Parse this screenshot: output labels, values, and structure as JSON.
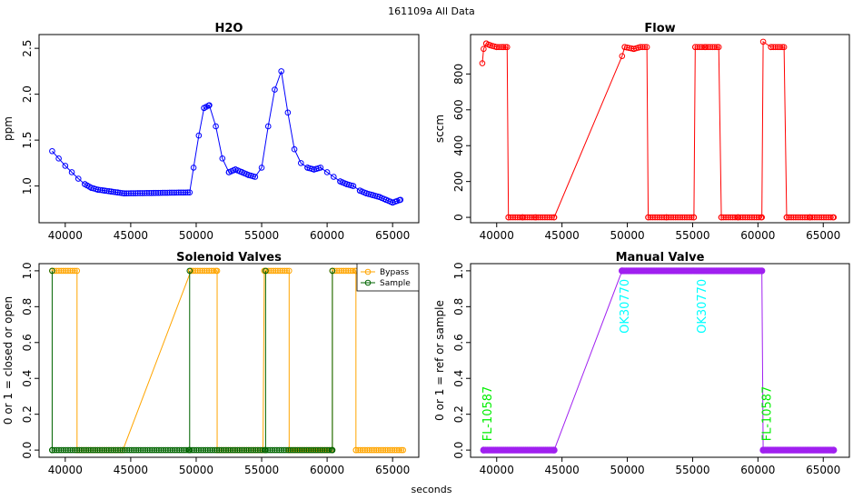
{
  "figure": {
    "suptitle": "161109a   All Data",
    "xlabel": "seconds"
  },
  "chart_data": [
    {
      "type": "scatter",
      "title": "H2O",
      "xlabel": "",
      "ylabel": "ppm",
      "xlim": [
        38000,
        67000
      ],
      "ylim": [
        0.6,
        2.65
      ],
      "xticks": [
        40000,
        45000,
        50000,
        55000,
        60000,
        65000
      ],
      "yticks": [
        1.0,
        1.5,
        2.0,
        2.5
      ],
      "xtick_labels": [
        "40000",
        "45000",
        "50000",
        "55000",
        "60000",
        "65000"
      ],
      "ytick_labels": [
        "1.0",
        "1.5",
        "2.0",
        "2.5"
      ],
      "grid": false,
      "series": [
        {
          "color": "#0000ff",
          "marker": "open-circle",
          "x": [
            39000,
            39500,
            40000,
            40500,
            41000,
            41500,
            42000,
            42500,
            43000,
            43500,
            44000,
            44500,
            49500,
            49800,
            50200,
            50600,
            51000,
            51500,
            52000,
            52500,
            53000,
            53500,
            54000,
            54500,
            55000,
            55500,
            56000,
            56500,
            57000,
            57500,
            58000,
            58500,
            59000,
            59500,
            60000,
            60500,
            61000,
            61500,
            62000,
            62500,
            63000,
            63500,
            64000,
            64500,
            65000,
            65600
          ],
          "y": [
            1.38,
            1.3,
            1.22,
            1.15,
            1.08,
            1.02,
            0.98,
            0.96,
            0.95,
            0.94,
            0.93,
            0.92,
            0.93,
            1.2,
            1.55,
            1.85,
            1.88,
            1.65,
            1.3,
            1.15,
            1.18,
            1.15,
            1.12,
            1.1,
            1.2,
            1.65,
            2.05,
            2.25,
            1.8,
            1.4,
            1.25,
            1.2,
            1.18,
            1.2,
            1.15,
            1.1,
            1.05,
            1.02,
            1.0,
            0.95,
            0.92,
            0.9,
            0.88,
            0.85,
            0.82,
            0.85
          ]
        }
      ]
    },
    {
      "type": "scatter",
      "title": "Flow",
      "xlabel": "",
      "ylabel": "sccm",
      "xlim": [
        38000,
        67000
      ],
      "ylim": [
        -30,
        1020
      ],
      "xticks": [
        40000,
        45000,
        50000,
        55000,
        60000,
        65000
      ],
      "yticks": [
        0,
        200,
        400,
        600,
        800
      ],
      "xtick_labels": [
        "40000",
        "45000",
        "50000",
        "55000",
        "60000",
        "65000"
      ],
      "ytick_labels": [
        "0",
        "200",
        "400",
        "600",
        "800"
      ],
      "grid": false,
      "series": [
        {
          "color": "#ff0000",
          "marker": "open-circle",
          "x": [
            38900,
            39000,
            39200,
            39500,
            40000,
            40500,
            40800,
            40900,
            42000,
            43000,
            44400,
            49600,
            49800,
            50500,
            51000,
            51500,
            51600,
            53000,
            55100,
            55200,
            56000,
            57000,
            57200,
            58500,
            60300,
            60400,
            61000,
            62000,
            62200,
            64000,
            65800
          ],
          "y": [
            860,
            940,
            970,
            960,
            950,
            950,
            950,
            0,
            0,
            0,
            0,
            900,
            950,
            940,
            950,
            950,
            0,
            0,
            0,
            950,
            950,
            950,
            0,
            0,
            0,
            980,
            950,
            950,
            0,
            0,
            0
          ]
        }
      ]
    },
    {
      "type": "scatter",
      "title": "Solenoid Valves",
      "xlabel": "",
      "ylabel": "0 or 1 = closed or open",
      "xlim": [
        38000,
        67000
      ],
      "ylim": [
        -0.04,
        1.04
      ],
      "xticks": [
        40000,
        45000,
        50000,
        55000,
        60000,
        65000
      ],
      "yticks": [
        0.0,
        0.2,
        0.4,
        0.6,
        0.8,
        1.0
      ],
      "xtick_labels": [
        "40000",
        "45000",
        "50000",
        "55000",
        "60000",
        "65000"
      ],
      "ytick_labels": [
        "0.0",
        "0.2",
        "0.4",
        "0.6",
        "0.8",
        "1.0"
      ],
      "legend_position": "top-right",
      "grid": false,
      "series": [
        {
          "name": "Bypass",
          "color": "#ffa500",
          "marker": "open-circle",
          "x": [
            39000,
            40900,
            40901,
            44400,
            49600,
            51600,
            51601,
            55100,
            55200,
            57100,
            57101,
            60400,
            60401,
            62200,
            62201,
            65800
          ],
          "y": [
            1,
            1,
            0,
            0,
            1,
            1,
            0,
            0,
            1,
            1,
            0,
            0,
            1,
            1,
            0,
            0
          ]
        },
        {
          "name": "Sample",
          "color": "#006400",
          "marker": "open-circle",
          "x": [
            39000,
            39001,
            39002,
            49500,
            49501,
            49502,
            55300,
            55301,
            55302,
            60400,
            60401,
            60402
          ],
          "y": [
            0,
            1,
            0,
            0,
            1,
            0,
            0,
            1,
            0,
            0,
            1,
            0
          ]
        }
      ]
    },
    {
      "type": "scatter",
      "title": "Manual Valve",
      "xlabel": "",
      "ylabel": "0 or 1 = ref or sample",
      "xlim": [
        38000,
        67000
      ],
      "ylim": [
        -0.04,
        1.04
      ],
      "xticks": [
        40000,
        45000,
        50000,
        55000,
        60000,
        65000
      ],
      "yticks": [
        0.0,
        0.2,
        0.4,
        0.6,
        0.8,
        1.0
      ],
      "xtick_labels": [
        "40000",
        "45000",
        "50000",
        "55000",
        "60000",
        "65000"
      ],
      "ytick_labels": [
        "0.0",
        "0.2",
        "0.4",
        "0.6",
        "0.8",
        "1.0"
      ],
      "grid": false,
      "series": [
        {
          "color": "#a020f0",
          "marker": "filled-circle",
          "x": [
            39000,
            44400,
            49600,
            60300,
            60400,
            65800
          ],
          "y": [
            0,
            0,
            1,
            1,
            0,
            0
          ]
        }
      ],
      "annotations": [
        {
          "text": "FL-10587",
          "x": 39600,
          "y": 0.05,
          "color": "#00ee00",
          "rotation": -90
        },
        {
          "text": "OK30770",
          "x": 50100,
          "y": 0.65,
          "color": "#00ffff",
          "rotation": -90
        },
        {
          "text": "OK30770",
          "x": 56000,
          "y": 0.65,
          "color": "#00ffff",
          "rotation": -90
        },
        {
          "text": "FL-10587",
          "x": 61000,
          "y": 0.05,
          "color": "#00ee00",
          "rotation": -90
        }
      ]
    }
  ]
}
